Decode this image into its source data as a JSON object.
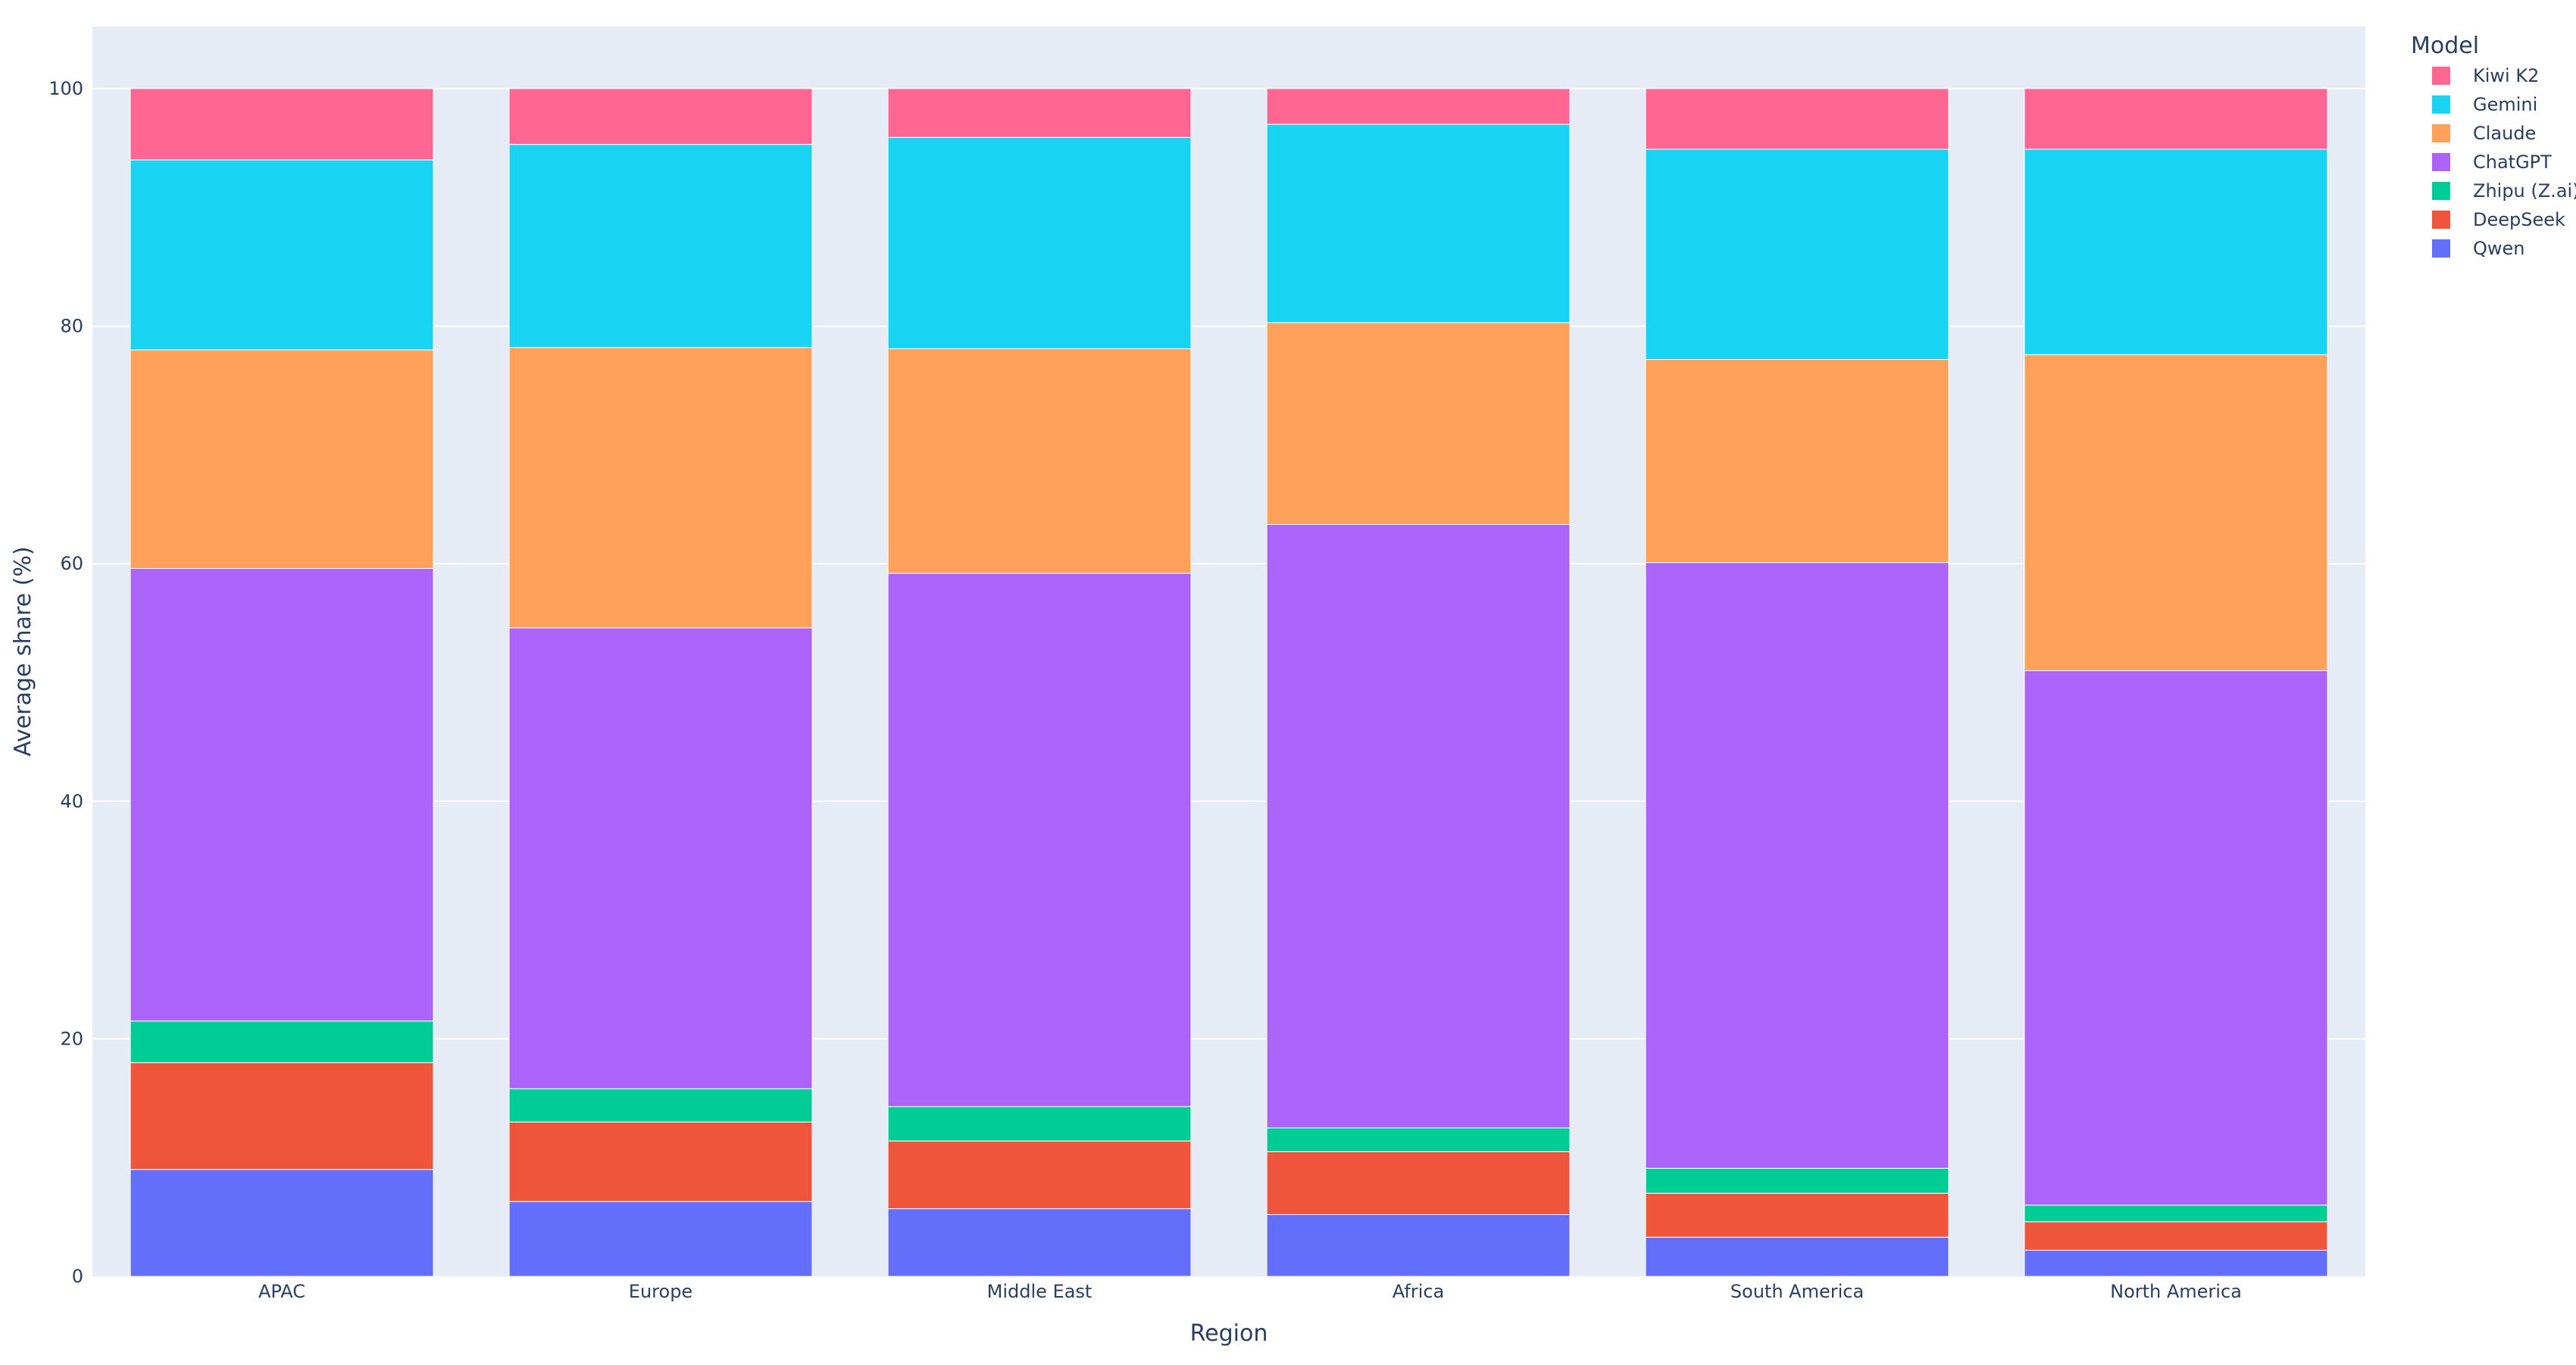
{
  "chart_data": {
    "type": "bar",
    "stacked": true,
    "title": "",
    "xlabel": "Region",
    "ylabel": "Average share (%)",
    "ylim": [
      0,
      100
    ],
    "yticks": [
      0,
      20,
      40,
      60,
      80,
      100
    ],
    "grid": true,
    "legend_title": "Model",
    "legend_position": "top-right",
    "categories": [
      "APAC",
      "Europe",
      "Middle East",
      "Africa",
      "South America",
      "North America"
    ],
    "series": [
      {
        "name": "Qwen",
        "color": "#636efa",
        "values": [
          9.0,
          6.3,
          5.7,
          5.2,
          3.3,
          2.2
        ]
      },
      {
        "name": "DeepSeek",
        "color": "#ef553b",
        "values": [
          9.0,
          6.7,
          5.7,
          5.3,
          3.7,
          2.4
        ]
      },
      {
        "name": "Zhipu (Z.ai)",
        "color": "#00cc96",
        "values": [
          3.5,
          2.8,
          2.9,
          2.0,
          2.1,
          1.4
        ]
      },
      {
        "name": "ChatGPT",
        "color": "#ab63fa",
        "values": [
          38.1,
          38.8,
          44.9,
          50.8,
          51.0,
          45.0
        ]
      },
      {
        "name": "Claude",
        "color": "#ffa15a",
        "values": [
          18.4,
          23.6,
          18.9,
          17.0,
          17.1,
          26.6
        ]
      },
      {
        "name": "Gemini",
        "color": "#19d3f3",
        "values": [
          16.0,
          17.1,
          17.8,
          16.7,
          17.7,
          17.3
        ]
      },
      {
        "name": "Kiwi K2",
        "color": "#ff6692",
        "values": [
          6.0,
          4.7,
          4.1,
          3.0,
          5.1,
          5.1
        ]
      }
    ]
  }
}
